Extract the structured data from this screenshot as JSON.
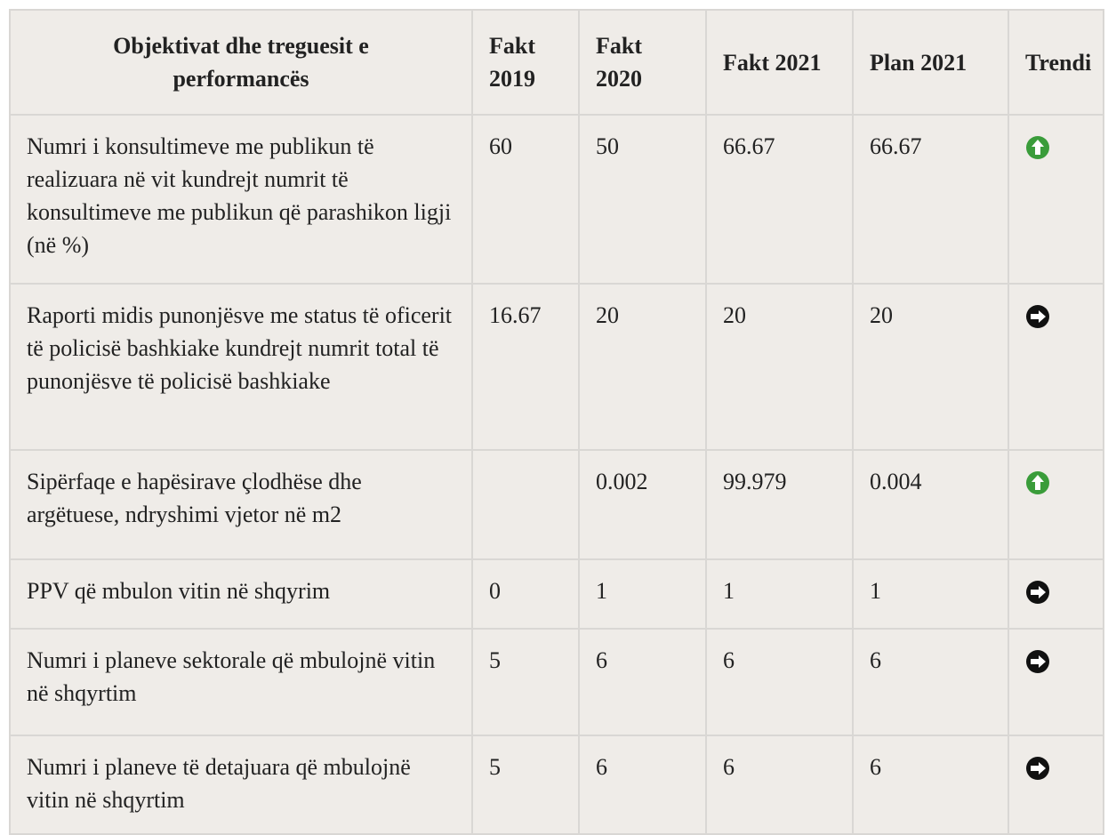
{
  "table": {
    "header": [
      "Objektivat dhe treguesit e performancës",
      "Fakt 2019",
      "Fakt 2020",
      "Fakt 2021",
      "Plan 2021",
      "Trendi"
    ],
    "rows": [
      {
        "cells": [
          "Numri i konsultimeve me publikun të realizuara në vit kundrejt numrit të konsultimeve me publikun që parashikon ligji (në %)",
          60,
          50,
          66.67,
          66.67
        ],
        "trend": "up"
      },
      {
        "cells": [
          "Raporti midis punonjësve me status të oficerit të policisë bashkiake kundrejt numrit total të punonjësve të policisë bashkiake",
          16.67,
          20,
          20,
          20
        ],
        "trend": "right"
      },
      {
        "cells": [
          "Sipërfaqe e hapësirave çlodhëse dhe argëtuese, ndryshimi vjetor në m2",
          null,
          0.002,
          99.979,
          0.004
        ],
        "trend": "up"
      },
      {
        "cells": [
          "PPV që mbulon vitin në shqyrim",
          0,
          1,
          1,
          1
        ],
        "trend": "right"
      },
      {
        "cells": [
          "Numri i planeve sektorale që mbulojnë vitin në shqyrtim",
          5,
          6,
          6,
          6
        ],
        "trend": "right"
      },
      {
        "cells": [
          "Numri i planeve të detajuara që mbulojnë vitin në shqyrtim",
          5,
          6,
          6,
          6
        ],
        "trend": "right"
      }
    ]
  }
}
